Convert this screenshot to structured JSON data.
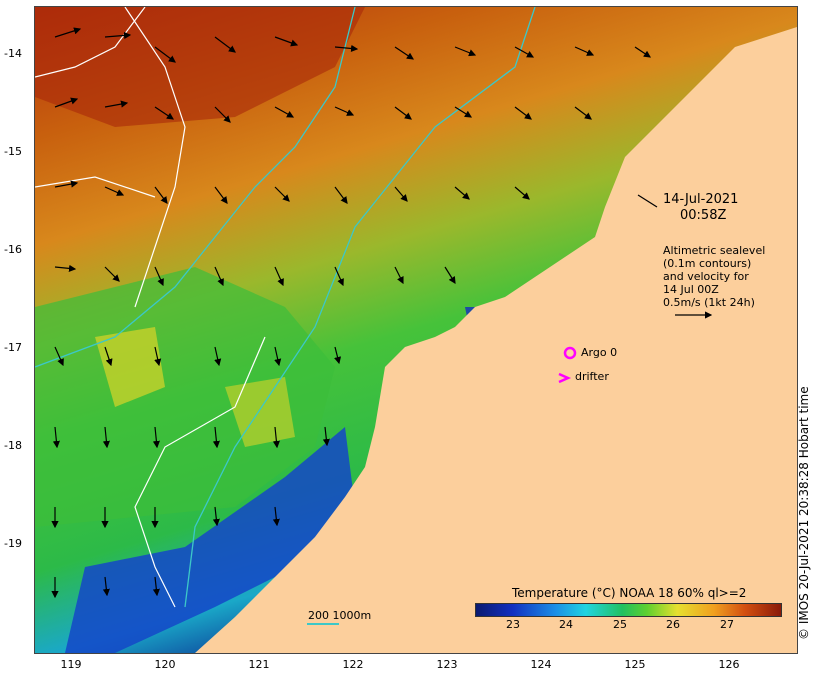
{
  "map": {
    "lat_labels": [
      "-14",
      "-15",
      "-16",
      "-17",
      "-18",
      "-19"
    ],
    "lon_labels": [
      "119",
      "120",
      "121",
      "122",
      "123",
      "124",
      "125",
      "126"
    ],
    "date": "14-Jul-2021",
    "time": "00:58Z",
    "legend_lines": [
      "Altimetric sealevel",
      "(0.1m contours)",
      "and velocity for",
      "14 Jul 00Z",
      "0.5m/s (1kt 24h)"
    ],
    "argo_label": "Argo 0",
    "drifter_label": "drifter",
    "colorbar_title": "Temperature (°C) NOAA 18 60% ql>=2",
    "colorbar_ticks": [
      "23",
      "24",
      "25",
      "26",
      "27"
    ],
    "depth_scale_label": "200  1000m",
    "credit": "© IMOS 20-Jul-2021 20:38:28 Hobart time",
    "colors": {
      "land": "#fccf9c",
      "contour": "#ffffff",
      "isobath": "#3cc8c8",
      "marker": "#ff00ff"
    }
  }
}
